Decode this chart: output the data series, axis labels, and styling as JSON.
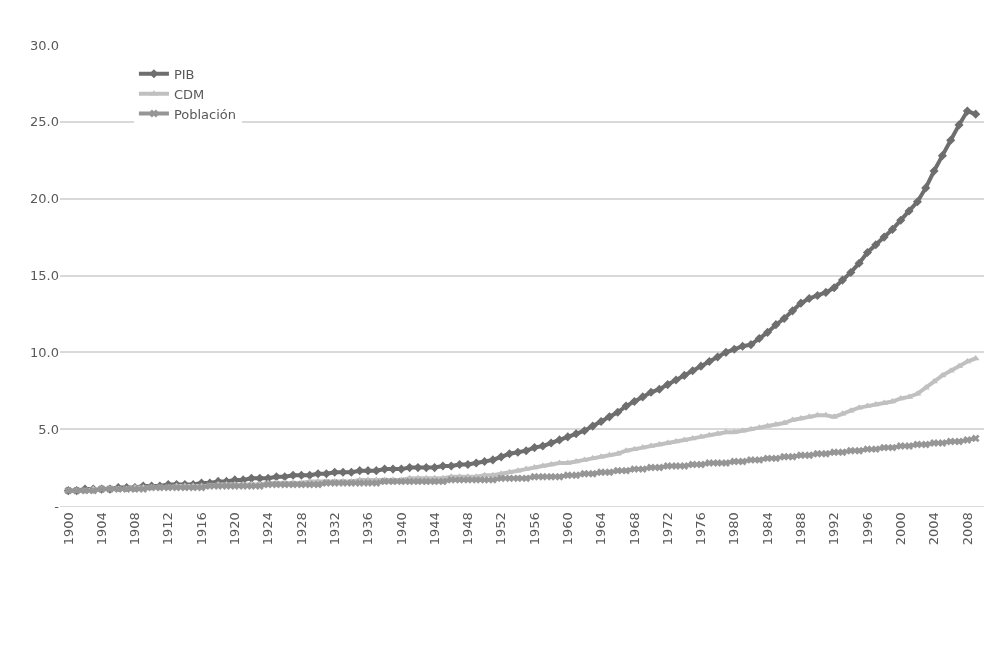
{
  "chart_data": {
    "type": "line",
    "x": [
      1900,
      1901,
      1902,
      1903,
      1904,
      1905,
      1906,
      1907,
      1908,
      1909,
      1910,
      1911,
      1912,
      1913,
      1914,
      1915,
      1916,
      1917,
      1918,
      1919,
      1920,
      1921,
      1922,
      1923,
      1924,
      1925,
      1926,
      1927,
      1928,
      1929,
      1930,
      1931,
      1932,
      1933,
      1934,
      1935,
      1936,
      1937,
      1938,
      1939,
      1940,
      1941,
      1942,
      1943,
      1944,
      1945,
      1946,
      1947,
      1948,
      1949,
      1950,
      1951,
      1952,
      1953,
      1954,
      1955,
      1956,
      1957,
      1958,
      1959,
      1960,
      1961,
      1962,
      1963,
      1964,
      1965,
      1966,
      1967,
      1968,
      1969,
      1970,
      1971,
      1972,
      1973,
      1974,
      1975,
      1976,
      1977,
      1978,
      1979,
      1980,
      1981,
      1982,
      1983,
      1984,
      1985,
      1986,
      1987,
      1988,
      1989,
      1990,
      1991,
      1992,
      1993,
      1994,
      1995,
      1996,
      1997,
      1998,
      1999,
      2000,
      2001,
      2002,
      2003,
      2004,
      2005,
      2006,
      2007,
      2008,
      2009
    ],
    "series": [
      {
        "name": "PIB",
        "color": "#6e6e6e",
        "marker": "diamond",
        "values": [
          1.0,
          1.0,
          1.1,
          1.1,
          1.1,
          1.1,
          1.2,
          1.2,
          1.2,
          1.3,
          1.3,
          1.3,
          1.4,
          1.4,
          1.4,
          1.4,
          1.5,
          1.5,
          1.6,
          1.6,
          1.7,
          1.7,
          1.8,
          1.8,
          1.8,
          1.9,
          1.9,
          2.0,
          2.0,
          2.0,
          2.1,
          2.1,
          2.2,
          2.2,
          2.2,
          2.3,
          2.3,
          2.3,
          2.4,
          2.4,
          2.4,
          2.5,
          2.5,
          2.5,
          2.5,
          2.6,
          2.6,
          2.7,
          2.7,
          2.8,
          2.9,
          3.0,
          3.2,
          3.4,
          3.5,
          3.6,
          3.8,
          3.9,
          4.1,
          4.3,
          4.5,
          4.7,
          4.9,
          5.2,
          5.5,
          5.8,
          6.1,
          6.5,
          6.8,
          7.1,
          7.4,
          7.6,
          7.9,
          8.2,
          8.5,
          8.8,
          9.1,
          9.4,
          9.7,
          10.0,
          10.2,
          10.4,
          10.5,
          10.9,
          11.3,
          11.8,
          12.2,
          12.7,
          13.2,
          13.5,
          13.7,
          13.9,
          14.2,
          14.7,
          15.2,
          15.8,
          16.5,
          17.0,
          17.5,
          18.0,
          18.6,
          19.2,
          19.8,
          20.7,
          21.8,
          22.8,
          23.8,
          24.8,
          25.7,
          25.5
        ]
      },
      {
        "name": "CDM",
        "color": "#c0c0c0",
        "marker": "triangle",
        "values": [
          1.0,
          1.0,
          1.0,
          1.1,
          1.1,
          1.1,
          1.1,
          1.1,
          1.2,
          1.2,
          1.2,
          1.2,
          1.2,
          1.3,
          1.3,
          1.3,
          1.3,
          1.3,
          1.4,
          1.4,
          1.4,
          1.4,
          1.4,
          1.4,
          1.5,
          1.5,
          1.5,
          1.5,
          1.5,
          1.6,
          1.6,
          1.6,
          1.6,
          1.6,
          1.6,
          1.7,
          1.7,
          1.7,
          1.7,
          1.7,
          1.7,
          1.8,
          1.8,
          1.8,
          1.8,
          1.8,
          1.9,
          1.9,
          1.9,
          1.9,
          2.0,
          2.0,
          2.1,
          2.2,
          2.3,
          2.4,
          2.5,
          2.6,
          2.7,
          2.8,
          2.8,
          2.9,
          3.0,
          3.1,
          3.2,
          3.3,
          3.4,
          3.6,
          3.7,
          3.8,
          3.9,
          4.0,
          4.1,
          4.2,
          4.3,
          4.4,
          4.5,
          4.6,
          4.7,
          4.8,
          4.8,
          4.9,
          5.0,
          5.1,
          5.2,
          5.3,
          5.4,
          5.6,
          5.7,
          5.8,
          5.9,
          5.9,
          5.8,
          6.0,
          6.2,
          6.4,
          6.5,
          6.6,
          6.7,
          6.8,
          7.0,
          7.1,
          7.3,
          7.7,
          8.1,
          8.5,
          8.8,
          9.1,
          9.4,
          9.6
        ]
      },
      {
        "name": "Población",
        "color": "#969696",
        "marker": "cross",
        "values": [
          1.0,
          1.0,
          1.0,
          1.0,
          1.1,
          1.1,
          1.1,
          1.1,
          1.1,
          1.1,
          1.2,
          1.2,
          1.2,
          1.2,
          1.2,
          1.2,
          1.2,
          1.3,
          1.3,
          1.3,
          1.3,
          1.3,
          1.3,
          1.3,
          1.4,
          1.4,
          1.4,
          1.4,
          1.4,
          1.4,
          1.4,
          1.5,
          1.5,
          1.5,
          1.5,
          1.5,
          1.5,
          1.5,
          1.6,
          1.6,
          1.6,
          1.6,
          1.6,
          1.6,
          1.6,
          1.6,
          1.7,
          1.7,
          1.7,
          1.7,
          1.7,
          1.7,
          1.8,
          1.8,
          1.8,
          1.8,
          1.9,
          1.9,
          1.9,
          1.9,
          2.0,
          2.0,
          2.1,
          2.1,
          2.2,
          2.2,
          2.3,
          2.3,
          2.4,
          2.4,
          2.5,
          2.5,
          2.6,
          2.6,
          2.6,
          2.7,
          2.7,
          2.8,
          2.8,
          2.8,
          2.9,
          2.9,
          3.0,
          3.0,
          3.1,
          3.1,
          3.2,
          3.2,
          3.3,
          3.3,
          3.4,
          3.4,
          3.5,
          3.5,
          3.6,
          3.6,
          3.7,
          3.7,
          3.8,
          3.8,
          3.9,
          3.9,
          4.0,
          4.0,
          4.1,
          4.1,
          4.2,
          4.2,
          4.3,
          4.4
        ]
      }
    ],
    "xlim": [
      1899,
      2010
    ],
    "xticks": [
      1900,
      1904,
      1908,
      1912,
      1916,
      1920,
      1924,
      1928,
      1932,
      1936,
      1940,
      1944,
      1948,
      1952,
      1956,
      1960,
      1964,
      1968,
      1972,
      1976,
      1980,
      1984,
      1988,
      1992,
      1996,
      2000,
      2004,
      2008
    ],
    "ylim": [
      0,
      30
    ],
    "yticks": [
      {
        "value": 0,
        "label": "-"
      },
      {
        "value": 5,
        "label": "5.0"
      },
      {
        "value": 10,
        "label": "10.0"
      },
      {
        "value": 15,
        "label": "15.0"
      },
      {
        "value": 20,
        "label": "20.0"
      },
      {
        "value": 25,
        "label": "25.0"
      },
      {
        "value": 30,
        "label": "30.0"
      }
    ],
    "grid": "y",
    "legend": "top left",
    "line_style": "solid"
  }
}
